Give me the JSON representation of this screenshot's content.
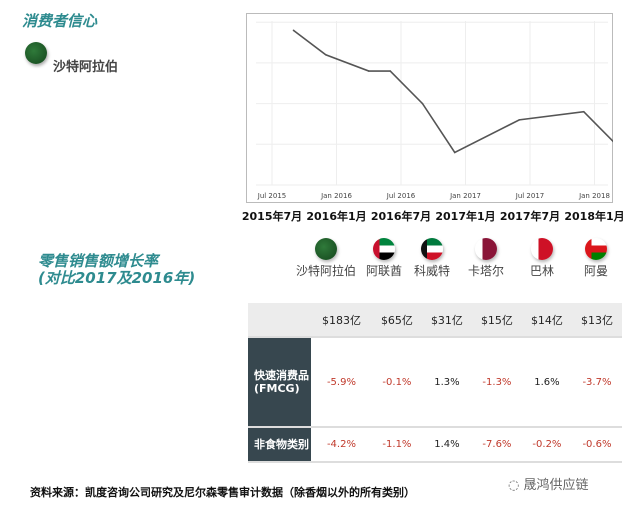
{
  "consumer_confidence": {
    "title": "消费者信心",
    "country": "沙特阿拉伯",
    "flag_icon": "saudi-arabia-flag-icon"
  },
  "chart_data": {
    "type": "line",
    "title": "",
    "xlabel": "",
    "ylabel": "",
    "x_tick_labels": [
      "Jul 2015",
      "Jan 2016",
      "Jul 2016",
      "Jan 2017",
      "Jul 2017",
      "Jan 2018"
    ],
    "x_tick_labels_cn": [
      "2015年7月",
      "2016年1月",
      "2016年7月",
      "2017年1月",
      "2017年7月",
      "2018年1月"
    ],
    "y_ticks_shown": false,
    "grid": true,
    "line_color": "#555555",
    "x": [
      "2015-09",
      "2015-12",
      "2016-04",
      "2016-06",
      "2016-09",
      "2016-12",
      "2017-06",
      "2017-12",
      "2018-03"
    ],
    "values": [
      3.8,
      3.2,
      2.8,
      2.8,
      2.0,
      0.8,
      1.6,
      1.8,
      1.0
    ],
    "ylim": [
      0,
      4
    ]
  },
  "retail": {
    "title_line1": "零售销售额增长率",
    "title_line2": "(对比2017及2016年)",
    "countries": [
      {
        "name": "沙特阿拉伯",
        "flag": "saudi-arabia",
        "size": "$183亿",
        "fmcg": "-5.9%",
        "nonfood": "-4.2%"
      },
      {
        "name": "阿联酋",
        "flag": "uae",
        "size": "$65亿",
        "fmcg": "-0.1%",
        "nonfood": "-1.1%"
      },
      {
        "name": "科威特",
        "flag": "kuwait",
        "size": "$31亿",
        "fmcg": "1.3%",
        "nonfood": "1.4%"
      },
      {
        "name": "卡塔尔",
        "flag": "qatar",
        "size": "$15亿",
        "fmcg": "-1.3%",
        "nonfood": "-7.6%"
      },
      {
        "name": "巴林",
        "flag": "bahrain",
        "size": "$14亿",
        "fmcg": "1.6%",
        "nonfood": "-0.2%"
      },
      {
        "name": "阿曼",
        "flag": "oman",
        "size": "$13亿",
        "fmcg": "-3.7%",
        "nonfood": "-0.6%"
      }
    ],
    "row_fmcg": "快速消费品\n(FMCG)",
    "row_nonfood": "非食物类别",
    "negative_color": "#c0392b"
  },
  "footer": "资料来源：凯度咨询公司研究及尼尔森零售审计数据（除香烟以外的所有类别）",
  "watermark": "晟鸿供应链"
}
